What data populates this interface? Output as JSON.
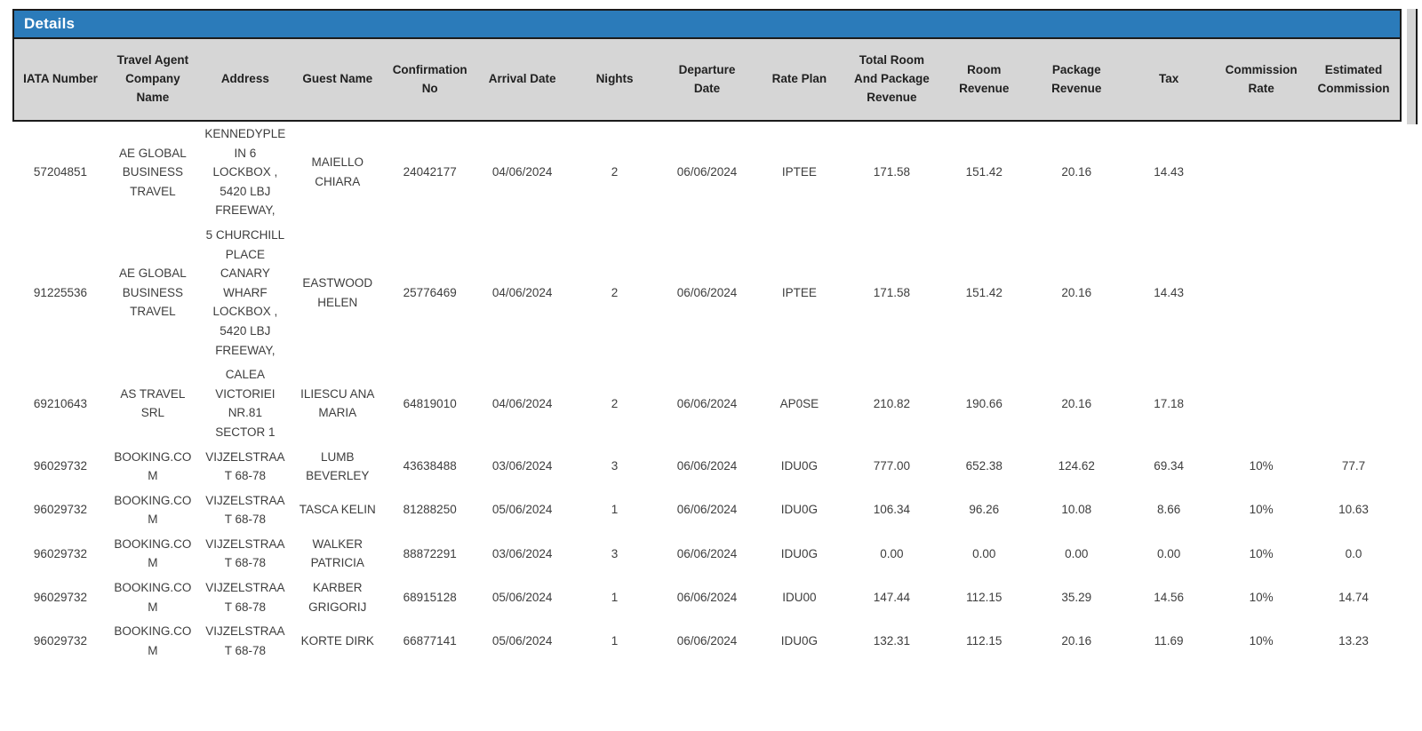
{
  "title": "Details",
  "colors": {
    "title_bar_blue": "#2b7bba",
    "title_text": "#ffffff",
    "header_background": "#d6d6d6",
    "header_text": "#212121",
    "body_text": "#3d3d3d",
    "border": "#1b1b1b",
    "edge_strip_gray": "#d4d4d4"
  },
  "columns": [
    {
      "id": "iata_number",
      "label": "IATA Number"
    },
    {
      "id": "travel_agent_company_name",
      "label": "Travel Agent Company Name"
    },
    {
      "id": "address",
      "label": "Address"
    },
    {
      "id": "guest_name",
      "label": "Guest Name"
    },
    {
      "id": "confirmation_no",
      "label": "Confirmation No"
    },
    {
      "id": "arrival_date",
      "label": "Arrival Date"
    },
    {
      "id": "nights",
      "label": "Nights"
    },
    {
      "id": "departure_date",
      "label": "Departure Date"
    },
    {
      "id": "rate_plan",
      "label": "Rate Plan"
    },
    {
      "id": "total_room_and_package_revenue",
      "label": "Total Room And Package Revenue"
    },
    {
      "id": "room_revenue",
      "label": "Room Revenue"
    },
    {
      "id": "package_revenue",
      "label": "Package Revenue"
    },
    {
      "id": "tax",
      "label": "Tax"
    },
    {
      "id": "commission_rate",
      "label": "Commission Rate"
    },
    {
      "id": "estimated_commission",
      "label": "Estimated Commission"
    }
  ],
  "rows": [
    {
      "iata_number": "57204851",
      "travel_agent_company_name": "AE GLOBAL BUSINESS TRAVEL",
      "address": "KENNEDYPLEIN 6 LOCKBOX , 5420 LBJ FREEWAY,",
      "guest_name": "MAIELLO CHIARA",
      "confirmation_no": "24042177",
      "arrival_date": "04/06/2024",
      "nights": "2",
      "departure_date": "06/06/2024",
      "rate_plan": "IPTEE",
      "total_room_and_package_revenue": "171.58",
      "room_revenue": "151.42",
      "package_revenue": "20.16",
      "tax": "14.43",
      "commission_rate": "",
      "estimated_commission": ""
    },
    {
      "iata_number": "91225536",
      "travel_agent_company_name": "AE GLOBAL BUSINESS TRAVEL",
      "address": "5 CHURCHILL PLACE CANARY WHARF LOCKBOX , 5420 LBJ FREEWAY,",
      "guest_name": "EASTWOOD HELEN",
      "confirmation_no": "25776469",
      "arrival_date": "04/06/2024",
      "nights": "2",
      "departure_date": "06/06/2024",
      "rate_plan": "IPTEE",
      "total_room_and_package_revenue": "171.58",
      "room_revenue": "151.42",
      "package_revenue": "20.16",
      "tax": "14.43",
      "commission_rate": "",
      "estimated_commission": ""
    },
    {
      "iata_number": "69210643",
      "travel_agent_company_name": "AS TRAVEL SRL",
      "address": "CALEA VICTORIEI NR.81 SECTOR 1",
      "guest_name": "ILIESCU ANA MARIA",
      "confirmation_no": "64819010",
      "arrival_date": "04/06/2024",
      "nights": "2",
      "departure_date": "06/06/2024",
      "rate_plan": "AP0SE",
      "total_room_and_package_revenue": "210.82",
      "room_revenue": "190.66",
      "package_revenue": "20.16",
      "tax": "17.18",
      "commission_rate": "",
      "estimated_commission": ""
    },
    {
      "iata_number": "96029732",
      "travel_agent_company_name": "BOOKING.COM",
      "address": "VIJZELSTRAAT 68-78",
      "guest_name": "LUMB BEVERLEY",
      "confirmation_no": "43638488",
      "arrival_date": "03/06/2024",
      "nights": "3",
      "departure_date": "06/06/2024",
      "rate_plan": "IDU0G",
      "total_room_and_package_revenue": "777.00",
      "room_revenue": "652.38",
      "package_revenue": "124.62",
      "tax": "69.34",
      "commission_rate": "10%",
      "estimated_commission": "77.7"
    },
    {
      "iata_number": "96029732",
      "travel_agent_company_name": "BOOKING.COM",
      "address": "VIJZELSTRAAT 68-78",
      "guest_name": "TASCA KELIN",
      "confirmation_no": "81288250",
      "arrival_date": "05/06/2024",
      "nights": "1",
      "departure_date": "06/06/2024",
      "rate_plan": "IDU0G",
      "total_room_and_package_revenue": "106.34",
      "room_revenue": "96.26",
      "package_revenue": "10.08",
      "tax": "8.66",
      "commission_rate": "10%",
      "estimated_commission": "10.63"
    },
    {
      "iata_number": "96029732",
      "travel_agent_company_name": "BOOKING.COM",
      "address": "VIJZELSTRAAT 68-78",
      "guest_name": "WALKER PATRICIA",
      "confirmation_no": "88872291",
      "arrival_date": "03/06/2024",
      "nights": "3",
      "departure_date": "06/06/2024",
      "rate_plan": "IDU0G",
      "total_room_and_package_revenue": "0.00",
      "room_revenue": "0.00",
      "package_revenue": "0.00",
      "tax": "0.00",
      "commission_rate": "10%",
      "estimated_commission": "0.0"
    },
    {
      "iata_number": "96029732",
      "travel_agent_company_name": "BOOKING.COM",
      "address": "VIJZELSTRAAT 68-78",
      "guest_name": "KARBER GRIGORIJ",
      "confirmation_no": "68915128",
      "arrival_date": "05/06/2024",
      "nights": "1",
      "departure_date": "06/06/2024",
      "rate_plan": "IDU00",
      "total_room_and_package_revenue": "147.44",
      "room_revenue": "112.15",
      "package_revenue": "35.29",
      "tax": "14.56",
      "commission_rate": "10%",
      "estimated_commission": "14.74"
    },
    {
      "iata_number": "96029732",
      "travel_agent_company_name": "BOOKING.COM",
      "address": "VIJZELSTRAAT 68-78",
      "guest_name": "KORTE DIRK",
      "confirmation_no": "66877141",
      "arrival_date": "05/06/2024",
      "nights": "1",
      "departure_date": "06/06/2024",
      "rate_plan": "IDU0G",
      "total_room_and_package_revenue": "132.31",
      "room_revenue": "112.15",
      "package_revenue": "20.16",
      "tax": "11.69",
      "commission_rate": "10%",
      "estimated_commission": "13.23"
    }
  ]
}
